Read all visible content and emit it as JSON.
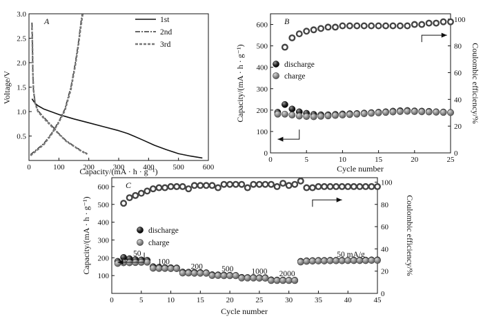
{
  "chart_data": [
    {
      "panel": "A",
      "type": "line",
      "xlabel": "Capacity/(mA · h · g⁻¹)",
      "ylabel": "Voltage/V",
      "xlim": [
        0,
        600
      ],
      "ylim": [
        0,
        3.0
      ],
      "xticks": [
        0,
        100,
        200,
        300,
        400,
        500,
        600
      ],
      "yticks": [
        0.5,
        1.0,
        1.5,
        2.0,
        2.5,
        3.0
      ],
      "legend": "top-right",
      "series": [
        {
          "name": "1st",
          "style": "solid",
          "color": "#111111",
          "points": [
            [
              10,
              1.26
            ],
            [
              20,
              1.17
            ],
            [
              30,
              1.12
            ],
            [
              50,
              1.05
            ],
            [
              100,
              0.94
            ],
            [
              150,
              0.85
            ],
            [
              200,
              0.77
            ],
            [
              250,
              0.69
            ],
            [
              300,
              0.61
            ],
            [
              330,
              0.55
            ],
            [
              350,
              0.5
            ],
            [
              380,
              0.42
            ],
            [
              420,
              0.31
            ],
            [
              460,
              0.22
            ],
            [
              500,
              0.14
            ],
            [
              540,
              0.09
            ],
            [
              580,
              0.05
            ]
          ]
        },
        {
          "name": "2nd",
          "style": "dashdot",
          "color": "#333333",
          "points": [
            [
              10,
              2.82
            ],
            [
              11,
              2.6
            ],
            [
              12,
              2.2
            ],
            [
              13,
              1.8
            ],
            [
              15,
              1.45
            ],
            [
              20,
              1.2
            ],
            [
              30,
              1.02
            ],
            [
              50,
              0.88
            ],
            [
              75,
              0.72
            ],
            [
              100,
              0.55
            ],
            [
              125,
              0.4
            ],
            [
              150,
              0.3
            ],
            [
              175,
              0.2
            ],
            [
              195,
              0.14
            ]
          ]
        },
        {
          "name": "3rd",
          "style": "dashed",
          "color": "#777777",
          "points": [
            [
              10,
              2.72
            ],
            [
              11,
              2.5
            ],
            [
              12,
              2.2
            ],
            [
              13,
              1.8
            ],
            [
              15,
              1.45
            ],
            [
              20,
              1.18
            ],
            [
              30,
              1.0
            ],
            [
              50,
              0.86
            ],
            [
              75,
              0.7
            ],
            [
              100,
              0.54
            ],
            [
              125,
              0.39
            ],
            [
              150,
              0.29
            ],
            [
              175,
              0.19
            ],
            [
              195,
              0.13
            ]
          ]
        },
        {
          "name": "",
          "style": "dashdot",
          "color": "#333333",
          "points": [
            [
              5,
              0.12
            ],
            [
              25,
              0.22
            ],
            [
              50,
              0.35
            ],
            [
              75,
              0.55
            ],
            [
              100,
              0.8
            ],
            [
              120,
              1.05
            ],
            [
              140,
              1.5
            ],
            [
              155,
              2.0
            ],
            [
              165,
              2.4
            ],
            [
              172,
              2.75
            ],
            [
              178,
              3.0
            ]
          ]
        },
        {
          "name": "",
          "style": "dashed",
          "color": "#777777",
          "points": [
            [
              5,
              0.1
            ],
            [
              25,
              0.2
            ],
            [
              50,
              0.33
            ],
            [
              75,
              0.53
            ],
            [
              100,
              0.78
            ],
            [
              120,
              1.02
            ],
            [
              140,
              1.45
            ],
            [
              155,
              1.95
            ],
            [
              165,
              2.35
            ],
            [
              173,
              2.72
            ],
            [
              180,
              3.0
            ]
          ]
        }
      ]
    },
    {
      "panel": "B",
      "type": "scatter",
      "xlabel": "Cycle number",
      "ylabel": "Capacity/(mA · h · g⁻¹)",
      "y2label": "Coulombic efficiency/%",
      "xlim": [
        0,
        25
      ],
      "ylim": [
        0,
        650
      ],
      "y2lim": [
        0,
        104
      ],
      "xticks": [
        0,
        5,
        10,
        15,
        20,
        25
      ],
      "yticks": [
        0,
        100,
        200,
        300,
        400,
        500,
        600
      ],
      "y2ticks": [
        0,
        20,
        40,
        60,
        80,
        100
      ],
      "legend": "left",
      "series": [
        {
          "name": "discharge",
          "marker": "filled-dark",
          "x": [
            1,
            2,
            3,
            4,
            5,
            6,
            7,
            8,
            9,
            10,
            11,
            12,
            13,
            14,
            15,
            16,
            17,
            18,
            19,
            20,
            21,
            22,
            23,
            24,
            25
          ],
          "y": [
            190,
            226,
            205,
            192,
            185,
            180,
            178,
            178,
            180,
            182,
            183,
            184,
            186,
            188,
            190,
            192,
            195,
            197,
            198,
            196,
            195,
            194,
            192,
            191,
            189
          ]
        },
        {
          "name": "charge",
          "marker": "filled-gray",
          "x": [
            1,
            2,
            3,
            4,
            5,
            6,
            7,
            8,
            9,
            10,
            11,
            12,
            13,
            14,
            15,
            16,
            17,
            18,
            19,
            20,
            21,
            22,
            23,
            24,
            25
          ],
          "y": [
            181,
            181,
            177,
            172,
            170,
            169,
            171,
            173,
            175,
            177,
            179,
            181,
            183,
            185,
            187,
            189,
            191,
            193,
            194,
            193,
            192,
            191,
            190,
            189,
            188
          ]
        },
        {
          "name": "",
          "marker": "ring",
          "axis": "right",
          "x": [
            2,
            3,
            4,
            5,
            6,
            7,
            8,
            9,
            10,
            11,
            12,
            13,
            14,
            15,
            16,
            17,
            18,
            19,
            20,
            21,
            22,
            23,
            24,
            25
          ],
          "y": [
            79,
            86,
            89,
            91,
            92,
            93,
            94,
            94,
            95,
            95,
            95,
            95,
            95,
            95,
            95,
            95,
            95,
            95,
            96,
            96,
            97,
            97,
            98,
            98
          ]
        }
      ],
      "arrows": [
        {
          "from": [
            4,
            64
          ],
          "to": [
            1,
            64
          ],
          "axis": "left"
        },
        {
          "from": [
            21,
            88
          ],
          "to": [
            24.5,
            88
          ],
          "axis": "right"
        }
      ]
    },
    {
      "panel": "C",
      "type": "scatter",
      "xlabel": "Cycle number",
      "ylabel": "Capacity/(mA · h · g⁻¹)",
      "y2label": "Coulombic efficiency/%",
      "xlim": [
        0,
        45
      ],
      "ylim": [
        0,
        650
      ],
      "y2lim": [
        0,
        104
      ],
      "xticks": [
        0,
        5,
        10,
        15,
        20,
        25,
        30,
        35,
        40,
        45
      ],
      "yticks": [
        100,
        200,
        300,
        400,
        500,
        600
      ],
      "y2ticks": [
        0,
        20,
        40,
        60,
        80,
        100
      ],
      "legend": "left",
      "series": [
        {
          "name": "discharge",
          "marker": "filled-dark",
          "x": [
            1,
            2,
            3,
            4,
            5,
            6,
            7,
            8,
            9,
            10,
            11,
            12,
            13,
            14,
            15,
            16,
            17,
            18,
            19,
            20,
            21,
            22,
            23,
            24,
            25,
            26,
            27,
            28,
            29,
            30,
            31,
            32,
            33,
            34,
            35,
            36,
            37,
            38,
            39,
            40,
            41,
            42,
            43,
            44,
            45
          ],
          "y": [
            180,
            202,
            195,
            190,
            188,
            186,
            150,
            147,
            145,
            144,
            143,
            120,
            119,
            118,
            117,
            116,
            105,
            104,
            103,
            102,
            101,
            90,
            89,
            89,
            88,
            88,
            76,
            75,
            75,
            74,
            74,
            180,
            183,
            184,
            185,
            185,
            186,
            186,
            186,
            186,
            187,
            187,
            187,
            188,
            188
          ]
        },
        {
          "name": "charge",
          "marker": "filled-gray",
          "x": [
            1,
            2,
            3,
            4,
            5,
            6,
            7,
            8,
            9,
            10,
            11,
            12,
            13,
            14,
            15,
            16,
            17,
            18,
            19,
            20,
            21,
            22,
            23,
            24,
            25,
            26,
            27,
            28,
            29,
            30,
            31,
            32,
            33,
            34,
            35,
            36,
            37,
            38,
            39,
            40,
            41,
            42,
            43,
            44,
            45
          ],
          "y": [
            168,
            172,
            172,
            173,
            174,
            175,
            141,
            140,
            140,
            139,
            139,
            114,
            114,
            113,
            113,
            113,
            100,
            100,
            99,
            99,
            99,
            86,
            86,
            86,
            85,
            85,
            72,
            72,
            72,
            72,
            72,
            176,
            180,
            181,
            182,
            182,
            183,
            183,
            183,
            184,
            184,
            184,
            184,
            185,
            185
          ]
        },
        {
          "name": "",
          "marker": "ring",
          "axis": "right",
          "x": [
            2,
            3,
            4,
            5,
            6,
            7,
            8,
            9,
            10,
            11,
            12,
            13,
            14,
            15,
            16,
            17,
            18,
            19,
            20,
            21,
            22,
            23,
            24,
            25,
            26,
            27,
            28,
            29,
            30,
            31,
            32,
            33,
            34,
            35,
            36,
            37,
            38,
            39,
            40,
            41,
            42,
            43,
            44,
            45
          ],
          "y": [
            81,
            86,
            88,
            90,
            92,
            94,
            95,
            95,
            96,
            96,
            96,
            94,
            97,
            97,
            97,
            97,
            95,
            98,
            98,
            98,
            98,
            95,
            98,
            98,
            98,
            98,
            96,
            99,
            97,
            98,
            101,
            95,
            95,
            96,
            96,
            96,
            96,
            96,
            96,
            96,
            96,
            96,
            96,
            96
          ]
        }
      ],
      "arrows": [
        {
          "from": [
            5.5,
            28
          ],
          "to": [
            1,
            28
          ],
          "axis": "right"
        },
        {
          "from": [
            34,
            84
          ],
          "to": [
            39,
            84
          ],
          "axis": "right"
        }
      ],
      "annotations": [
        {
          "text": "50",
          "x": 4.3,
          "y": 210
        },
        {
          "text": "100",
          "x": 8.8,
          "y": 165
        },
        {
          "text": "200",
          "x": 14.4,
          "y": 137
        },
        {
          "text": "500",
          "x": 19.6,
          "y": 123
        },
        {
          "text": "1000",
          "x": 25,
          "y": 110
        },
        {
          "text": "2000",
          "x": 29.7,
          "y": 96
        },
        {
          "text": "50 mA/g",
          "x": 40.5,
          "y": 205
        }
      ]
    }
  ]
}
